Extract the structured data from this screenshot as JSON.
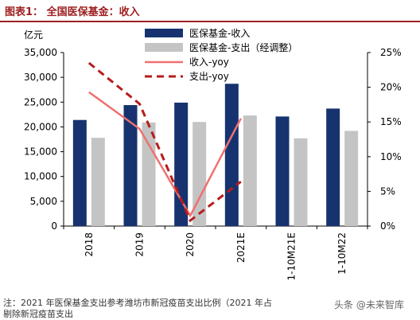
{
  "title": "图表1： 全国医保基金：收入",
  "chart_data": {
    "type": "bar",
    "categories": [
      "2018",
      "2019",
      "2020",
      "2021E",
      "1-10M21E",
      "1-10M22"
    ],
    "y_left_label": "亿元",
    "y_left_range": [
      0,
      35000
    ],
    "y_left_ticks": [
      "0",
      "5,000",
      "10,000",
      "15,000",
      "20,000",
      "25,000",
      "30,000",
      "35,000"
    ],
    "y_right_range": [
      0,
      25
    ],
    "y_right_ticks": [
      "0%",
      "5%",
      "10%",
      "15%",
      "20%",
      "25%"
    ],
    "series": [
      {
        "name": "医保基金-收入",
        "kind": "bar",
        "axis": "left",
        "color": "#16336f",
        "values": [
          21400,
          24400,
          24900,
          28700,
          22100,
          23700
        ]
      },
      {
        "name": "医保基金-支出（经调整）",
        "kind": "bar",
        "axis": "left",
        "color": "#c4c4c4",
        "values": [
          17800,
          20900,
          21000,
          22300,
          17700,
          19200
        ]
      },
      {
        "name": "收入-yoy",
        "kind": "line",
        "style": "solid",
        "axis": "right",
        "color": "#f07070",
        "values": [
          19.3,
          14.0,
          1.5,
          15.5,
          null,
          null
        ]
      },
      {
        "name": "支出-yoy",
        "kind": "line",
        "style": "dashed",
        "axis": "right",
        "color": "#b71c1c",
        "values": [
          23.5,
          17.6,
          0.8,
          6.4,
          null,
          null
        ]
      }
    ],
    "legend_position": "top",
    "grid": false
  },
  "note": "注：2021 年医保基金支出参考潍坊市新冠疫苗支出比例（2021 年占",
  "note2": "剔除新冠疫苗支出",
  "watermark": "头条 @未来智库"
}
